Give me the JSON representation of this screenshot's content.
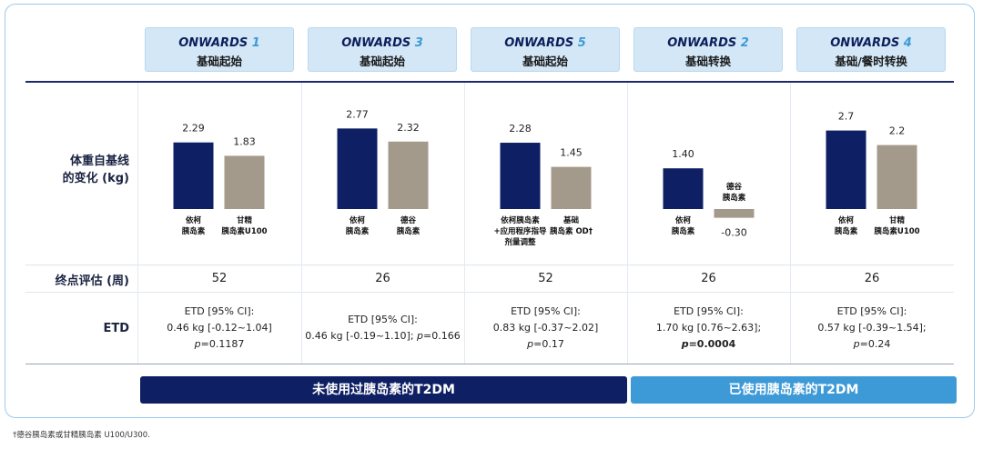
{
  "studies": [
    {
      "name": "ONWARDS",
      "num": "1",
      "subtitle": "基础起始"
    },
    {
      "name": "ONWARDS",
      "num": "3",
      "subtitle": "基础起始"
    },
    {
      "name": "ONWARDS",
      "num": "5",
      "subtitle": "基础起始"
    },
    {
      "name": "ONWARDS",
      "num": "2",
      "subtitle": "基础转换"
    },
    {
      "name": "ONWARDS",
      "num": "4",
      "subtitle": "基础/餐时转换"
    }
  ],
  "row_labels": {
    "weight_line1": "体重自基线",
    "weight_line2": "的变化 (kg)",
    "endpoint": "终点评估 (周)",
    "etd": "ETD"
  },
  "chart_data": {
    "type": "bar",
    "title": "",
    "ylabel": "体重自基线的变化 (kg)",
    "ylim": [
      -0.5,
      3.0
    ],
    "colors": {
      "efsitora": "#0e1f63",
      "comparator": "#a49a8c"
    },
    "groups": [
      {
        "bars": [
          {
            "label": [
              "依柯",
              "胰岛素"
            ],
            "value": 2.29,
            "display": "2.29"
          },
          {
            "label": [
              "甘精",
              "胰岛素U100"
            ],
            "value": 1.83,
            "display": "1.83"
          }
        ]
      },
      {
        "bars": [
          {
            "label": [
              "依柯",
              "胰岛素"
            ],
            "value": 2.77,
            "display": "2.77"
          },
          {
            "label": [
              "德谷",
              "胰岛素"
            ],
            "value": 2.32,
            "display": "2.32"
          }
        ]
      },
      {
        "bars": [
          {
            "label": [
              "依柯胰岛素",
              "+应用程序指导",
              "剂量调整"
            ],
            "value": 2.28,
            "display": "2.28"
          },
          {
            "label": [
              "基础",
              "胰岛素 OD†"
            ],
            "value": 1.45,
            "display": "1.45"
          }
        ]
      },
      {
        "bars": [
          {
            "label": [
              "依柯",
              "胰岛素"
            ],
            "value": 1.4,
            "display": "1.40"
          },
          {
            "label": [
              "德谷",
              "胰岛素"
            ],
            "value": -0.3,
            "display": "-0.30"
          }
        ]
      },
      {
        "bars": [
          {
            "label": [
              "依柯",
              "胰岛素"
            ],
            "value": 2.7,
            "display": "2.7"
          },
          {
            "label": [
              "甘精",
              "胰岛素U100"
            ],
            "value": 2.2,
            "display": "2.2"
          }
        ]
      }
    ]
  },
  "endpoints": [
    "52",
    "26",
    "52",
    "26",
    "26"
  ],
  "etd": [
    {
      "lines": [
        "ETD [95% CI]:",
        "0.46 kg [-0.12~1.04]"
      ],
      "p": "=0.1187",
      "p_bold": false,
      "inline": false
    },
    {
      "lines": [
        "ETD [95% CI]:",
        "0.46 kg [-0.19~1.10];"
      ],
      "p": "=0.166",
      "p_bold": false,
      "inline": true
    },
    {
      "lines": [
        "ETD [95% CI]:",
        "0.83 kg [-0.37~2.02]"
      ],
      "p": "=0.17",
      "p_bold": false,
      "inline": false
    },
    {
      "lines": [
        "ETD [95% CI]:",
        "1.70 kg [0.76~2.63];"
      ],
      "p": "=0.0004",
      "p_bold": true,
      "inline": false
    },
    {
      "lines": [
        "ETD [95% CI]:",
        "0.57 kg [-0.39~1.54];"
      ],
      "p": "=0.24",
      "p_bold": false,
      "inline": false
    }
  ],
  "p_symbol": "p",
  "banners": {
    "naive": "未使用过胰岛素的T2DM",
    "experienced": "已使用胰岛素的T2DM"
  },
  "footnote": "†德谷胰岛素或甘精胰岛素 U100/U300."
}
